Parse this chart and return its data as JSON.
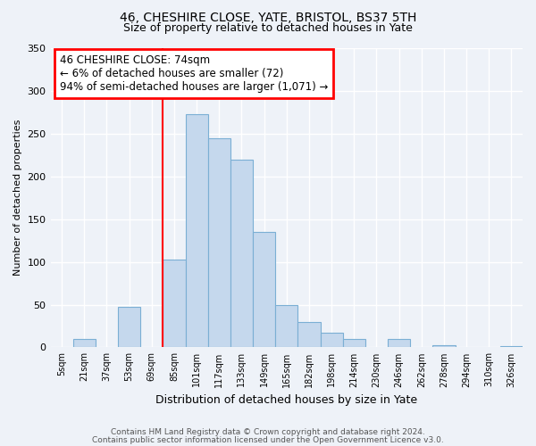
{
  "title": "46, CHESHIRE CLOSE, YATE, BRISTOL, BS37 5TH",
  "subtitle": "Size of property relative to detached houses in Yate",
  "xlabel": "Distribution of detached houses by size in Yate",
  "ylabel": "Number of detached properties",
  "bin_labels": [
    "5sqm",
    "21sqm",
    "37sqm",
    "53sqm",
    "69sqm",
    "85sqm",
    "101sqm",
    "117sqm",
    "133sqm",
    "149sqm",
    "165sqm",
    "182sqm",
    "198sqm",
    "214sqm",
    "230sqm",
    "246sqm",
    "262sqm",
    "278sqm",
    "294sqm",
    "310sqm",
    "326sqm"
  ],
  "bar_values": [
    0,
    10,
    0,
    47,
    0,
    103,
    273,
    245,
    220,
    135,
    50,
    30,
    17,
    10,
    0,
    10,
    0,
    3,
    0,
    0,
    2
  ],
  "bar_color": "#c5d8ed",
  "bar_edge_color": "#7bafd4",
  "annotation_text": "46 CHESHIRE CLOSE: 74sqm\n← 6% of detached houses are smaller (72)\n94% of semi-detached houses are larger (1,071) →",
  "annotation_box_color": "white",
  "annotation_box_edge_color": "red",
  "redline_color": "red",
  "ylim": [
    0,
    350
  ],
  "yticks": [
    0,
    50,
    100,
    150,
    200,
    250,
    300,
    350
  ],
  "footer1": "Contains HM Land Registry data © Crown copyright and database right 2024.",
  "footer2": "Contains public sector information licensed under the Open Government Licence v3.0.",
  "bg_color": "#eef2f8",
  "grid_color": "#ffffff",
  "title_fontsize": 10,
  "subtitle_fontsize": 9,
  "ylabel_fontsize": 8,
  "xlabel_fontsize": 9,
  "tick_fontsize": 7,
  "footer_fontsize": 6.5,
  "ann_fontsize": 8.5,
  "redline_index": 5
}
